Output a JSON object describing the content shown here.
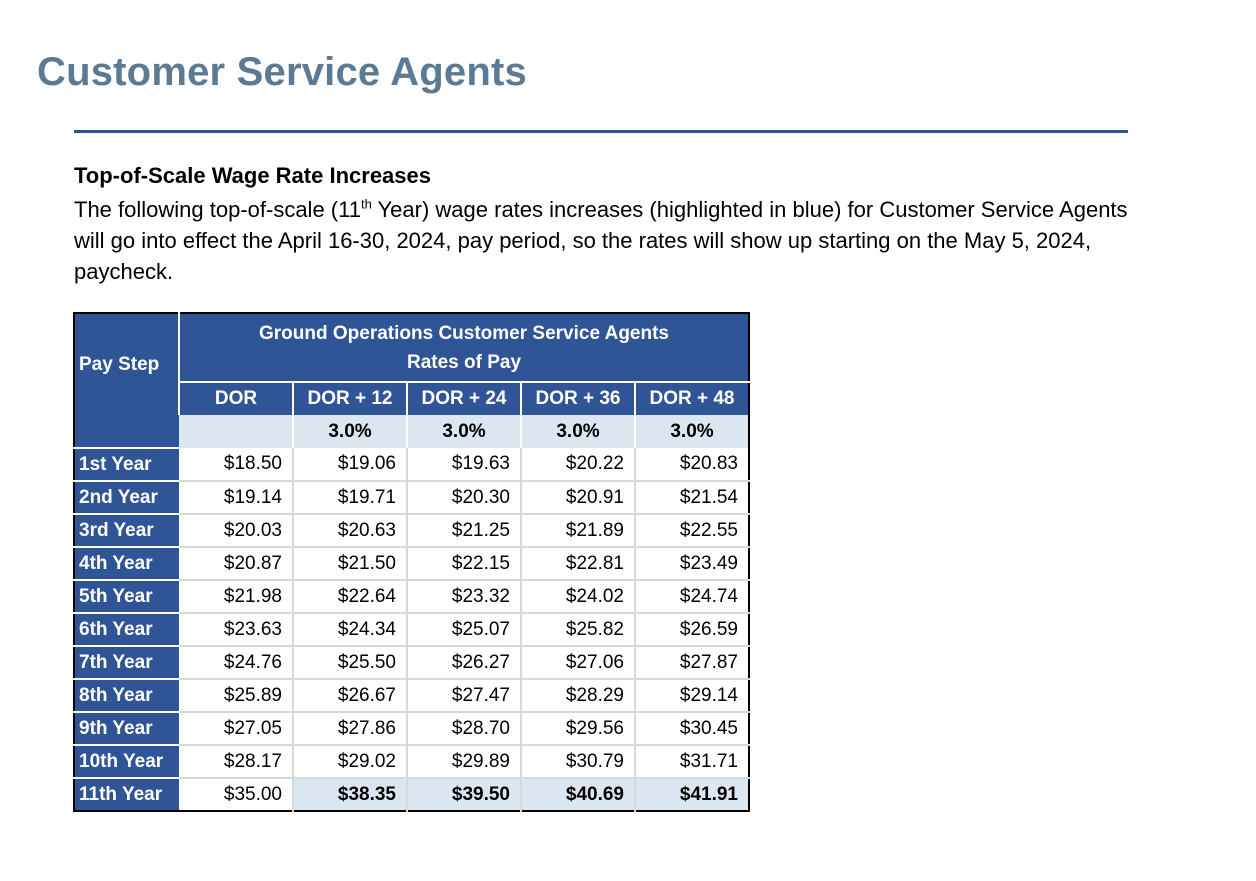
{
  "title": "Customer Service Agents",
  "section_heading": "Top-of-Scale Wage Rate Increases",
  "intro": {
    "before_sup": "The following top-of-scale (11",
    "sup": "th",
    "after_sup": " Year) wage rates increases (highlighted in blue) for Customer Service Agents will go into effect the April 16-30, 2024, pay period, so the rates will show up starting on the May 5, 2024, paycheck."
  },
  "table": {
    "row_header_label": "Pay Step",
    "title_line1": "Ground Operations Customer Service Agents",
    "title_line2": "Rates of Pay",
    "columns": [
      "DOR",
      "DOR + 12",
      "DOR + 24",
      "DOR + 36",
      "DOR + 48"
    ],
    "increase_row": [
      "",
      "3.0%",
      "3.0%",
      "3.0%",
      "3.0%"
    ],
    "rows": [
      {
        "label": "1st Year",
        "values": [
          "$18.50",
          "$19.06",
          "$19.63",
          "$20.22",
          "$20.83"
        ]
      },
      {
        "label": "2nd Year",
        "values": [
          "$19.14",
          "$19.71",
          "$20.30",
          "$20.91",
          "$21.54"
        ]
      },
      {
        "label": "3rd Year",
        "values": [
          "$20.03",
          "$20.63",
          "$21.25",
          "$21.89",
          "$22.55"
        ]
      },
      {
        "label": "4th Year",
        "values": [
          "$20.87",
          "$21.50",
          "$22.15",
          "$22.81",
          "$23.49"
        ]
      },
      {
        "label": "5th Year",
        "values": [
          "$21.98",
          "$22.64",
          "$23.32",
          "$24.02",
          "$24.74"
        ]
      },
      {
        "label": "6th Year",
        "values": [
          "$23.63",
          "$24.34",
          "$25.07",
          "$25.82",
          "$26.59"
        ]
      },
      {
        "label": "7th Year",
        "values": [
          "$24.76",
          "$25.50",
          "$26.27",
          "$27.06",
          "$27.87"
        ]
      },
      {
        "label": "8th Year",
        "values": [
          "$25.89",
          "$26.67",
          "$27.47",
          "$28.29",
          "$29.14"
        ]
      },
      {
        "label": "9th Year",
        "values": [
          "$27.05",
          "$27.86",
          "$28.70",
          "$29.56",
          "$30.45"
        ]
      },
      {
        "label": "10th Year",
        "values": [
          "$28.17",
          "$29.02",
          "$29.89",
          "$30.79",
          "$31.71"
        ]
      },
      {
        "label": "11th Year",
        "values": [
          "$35.00",
          "$38.35",
          "$39.50",
          "$40.69",
          "$41.91"
        ]
      }
    ]
  },
  "colors": {
    "title": "#5b7b95",
    "rule": "#2f4f9b",
    "header_blue": "#2f5597",
    "highlight_blue": "#dbe6f1"
  }
}
